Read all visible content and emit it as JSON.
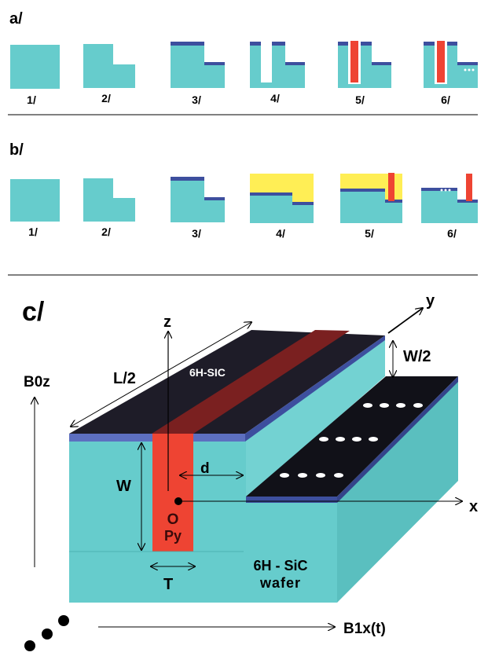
{
  "panel_a": {
    "label": "a/",
    "steps": [
      "1/",
      "2/",
      "3/",
      "4/",
      "5/",
      "6/"
    ]
  },
  "panel_b": {
    "label": "b/",
    "steps": [
      "1/",
      "2/",
      "3/",
      "4/",
      "5/",
      "6/"
    ]
  },
  "panel_c": {
    "label": "c/",
    "axis_z": "z",
    "axis_y": "y",
    "axis_x": "x",
    "field_z": "B0z",
    "field_x": "B1x(t)",
    "length": "L/2",
    "half_width": "W/2",
    "width": "W",
    "distance": "d",
    "thickness": "T",
    "origin": "O",
    "py": "Py",
    "sic_label": "6H-SIC",
    "wafer_line1": "6H - SiC",
    "wafer_line2": "wafer"
  },
  "colors": {
    "substrate": "#66cccc",
    "oxide": "#3d4f9e",
    "permalloy": "#ee4433",
    "resist": "#ffee55",
    "dark_top": "#1e1c28",
    "stripe": "#7a2020"
  }
}
